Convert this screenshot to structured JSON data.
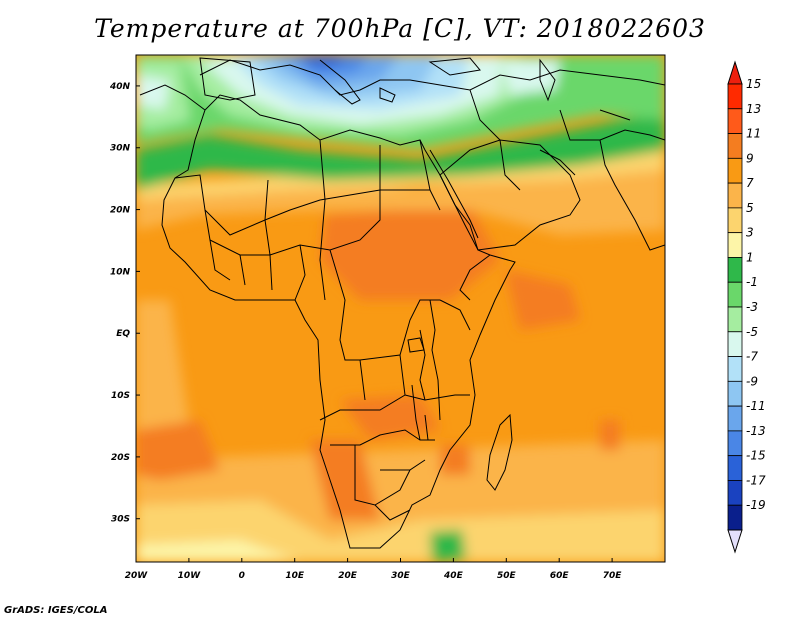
{
  "title": "Temperature at 700hPa [C], VT: 2018022603",
  "footer": "GrADS: IGES/COLA",
  "map": {
    "lon_range": [
      -20,
      80
    ],
    "lat_range": [
      -37,
      45
    ],
    "lon_labels": [
      "20W",
      "10W",
      "0",
      "10E",
      "20E",
      "30E",
      "40E",
      "50E",
      "60E",
      "70E"
    ],
    "lon_values": [
      -20,
      -10,
      0,
      10,
      20,
      30,
      40,
      50,
      60,
      70
    ],
    "lat_labels": [
      "40N",
      "30N",
      "20N",
      "10N",
      "EQ",
      "10S",
      "20S",
      "30S"
    ],
    "lat_values": [
      40,
      30,
      20,
      10,
      0,
      -10,
      -20,
      -30
    ]
  },
  "colorbar": {
    "labels": [
      "15",
      "13",
      "11",
      "9",
      "7",
      "5",
      "3",
      "1",
      "-1",
      "-3",
      "-5",
      "-7",
      "-9",
      "-11",
      "-13",
      "-15",
      "-17",
      "-19"
    ],
    "colors": [
      "#ff2a00",
      "#ff5a1a",
      "#f47d20",
      "#f99a14",
      "#fbb44a",
      "#fcd46e",
      "#fdf5a8",
      "#2fb84a",
      "#6ad76a",
      "#a5eda0",
      "#d9f8ee",
      "#b2e1f8",
      "#8ec6f2",
      "#6aa6ec",
      "#4a86e6",
      "#2a62d8",
      "#1a42c0",
      "#0a1f8c"
    ],
    "top_color": "#ee1f0e",
    "bottom_color": "#e4e0fb"
  }
}
